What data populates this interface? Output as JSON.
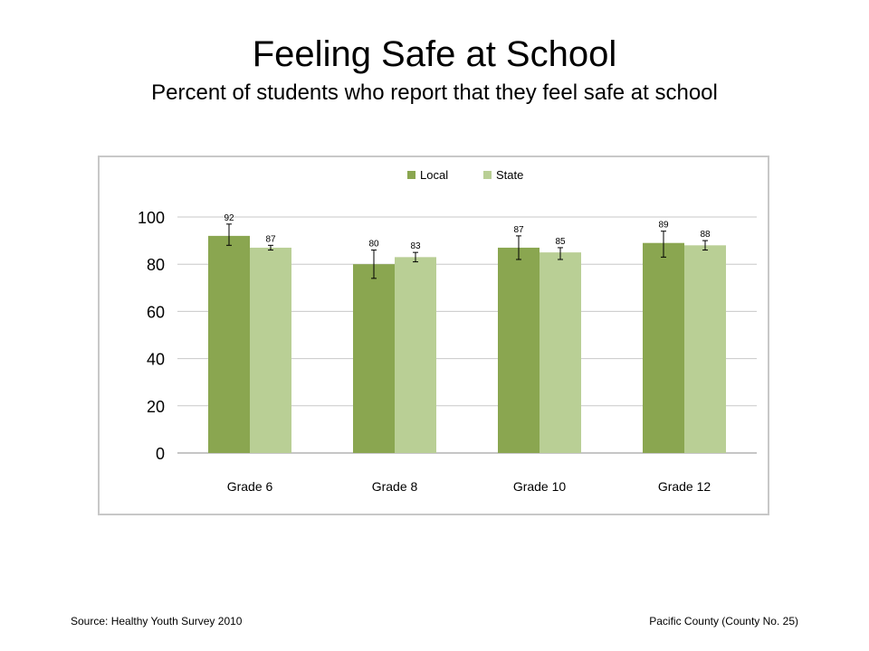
{
  "slide": {
    "title": "Feeling Safe at School",
    "subtitle": "Percent of students who report that they feel safe at school"
  },
  "footer": {
    "source": "Source: Healthy Youth Survey 2010",
    "county": "Pacific County (County No. 25)"
  },
  "chart_data": {
    "type": "bar",
    "title": "",
    "xlabel": "",
    "ylabel": "",
    "categories": [
      "Grade 6",
      "Grade 8",
      "Grade 10",
      "Grade 12"
    ],
    "ylim": [
      0,
      100
    ],
    "yticks": [
      0,
      20,
      40,
      60,
      80,
      100
    ],
    "grid": true,
    "legend_position": "top",
    "series": [
      {
        "name": "Local",
        "color": "#8aa650",
        "values": [
          92,
          80,
          87,
          89
        ],
        "error_low": [
          88,
          74,
          82,
          83
        ],
        "error_high": [
          97,
          86,
          92,
          94
        ]
      },
      {
        "name": "State",
        "color": "#b9cf95",
        "values": [
          87,
          83,
          85,
          88
        ],
        "error_low": [
          86,
          81,
          82,
          86
        ],
        "error_high": [
          88,
          85,
          87,
          90
        ]
      }
    ]
  }
}
